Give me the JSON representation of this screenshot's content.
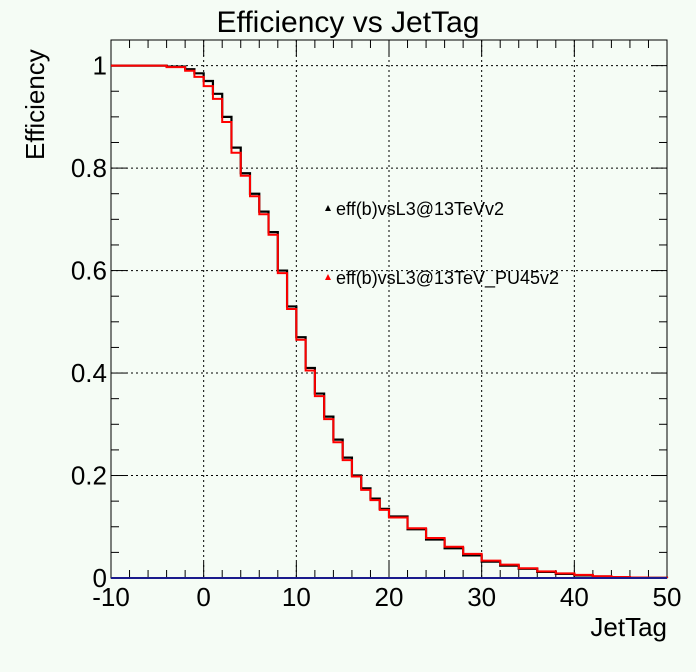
{
  "chart_data": {
    "type": "line",
    "title": "Efficiency vs JetTag",
    "xlabel": "JetTag",
    "ylabel": "Efficiency",
    "xlim": [
      -10,
      50
    ],
    "ylim": [
      0,
      1.05
    ],
    "grid": true,
    "legend_placement": "center-right",
    "x_ticks": [
      -10,
      0,
      10,
      20,
      30,
      40,
      50
    ],
    "y_ticks": [
      0,
      0.2,
      0.4,
      0.6,
      0.8,
      1
    ],
    "x_tick_labels": [
      "-10",
      "0",
      "10",
      "20",
      "30",
      "40",
      "50"
    ],
    "y_tick_labels": [
      "0",
      "0.2",
      "0.4",
      "0.6",
      "0.8",
      "1"
    ],
    "series": [
      {
        "name": "eff(b)vsL3@13TeVv2",
        "color": "#000000",
        "x": [
          -10,
          -4,
          -2,
          -1,
          0,
          1,
          2,
          3,
          4,
          5,
          6,
          7,
          8,
          9,
          10,
          11,
          12,
          13,
          14,
          15,
          16,
          17,
          18,
          19,
          20,
          22,
          24,
          26,
          28,
          30,
          32,
          34,
          36,
          38,
          40,
          42,
          44,
          46,
          48,
          50
        ],
        "y": [
          1.0,
          0.998,
          0.993,
          0.985,
          0.97,
          0.945,
          0.9,
          0.84,
          0.79,
          0.75,
          0.715,
          0.675,
          0.6,
          0.53,
          0.47,
          0.41,
          0.36,
          0.315,
          0.27,
          0.235,
          0.2,
          0.175,
          0.155,
          0.135,
          0.12,
          0.095,
          0.075,
          0.058,
          0.044,
          0.032,
          0.024,
          0.018,
          0.012,
          0.008,
          0.005,
          0.003,
          0.0015,
          0.0008,
          0.0003,
          0.0
        ]
      },
      {
        "name": "eff(b)vsL3@13TeV_PU45v2",
        "color": "#ff0000",
        "x": [
          -10,
          -4,
          -2,
          -1,
          0,
          1,
          2,
          3,
          4,
          5,
          6,
          7,
          8,
          9,
          10,
          11,
          12,
          13,
          14,
          15,
          16,
          17,
          18,
          19,
          20,
          22,
          24,
          26,
          28,
          30,
          32,
          34,
          36,
          38,
          40,
          42,
          44,
          46,
          48,
          50
        ],
        "y": [
          1.0,
          0.997,
          0.99,
          0.978,
          0.96,
          0.935,
          0.89,
          0.83,
          0.785,
          0.745,
          0.71,
          0.67,
          0.595,
          0.525,
          0.465,
          0.405,
          0.355,
          0.31,
          0.265,
          0.23,
          0.198,
          0.172,
          0.152,
          0.133,
          0.118,
          0.097,
          0.078,
          0.061,
          0.047,
          0.034,
          0.026,
          0.019,
          0.013,
          0.009,
          0.006,
          0.0035,
          0.002,
          0.001,
          0.0004,
          0.0
        ]
      }
    ]
  }
}
